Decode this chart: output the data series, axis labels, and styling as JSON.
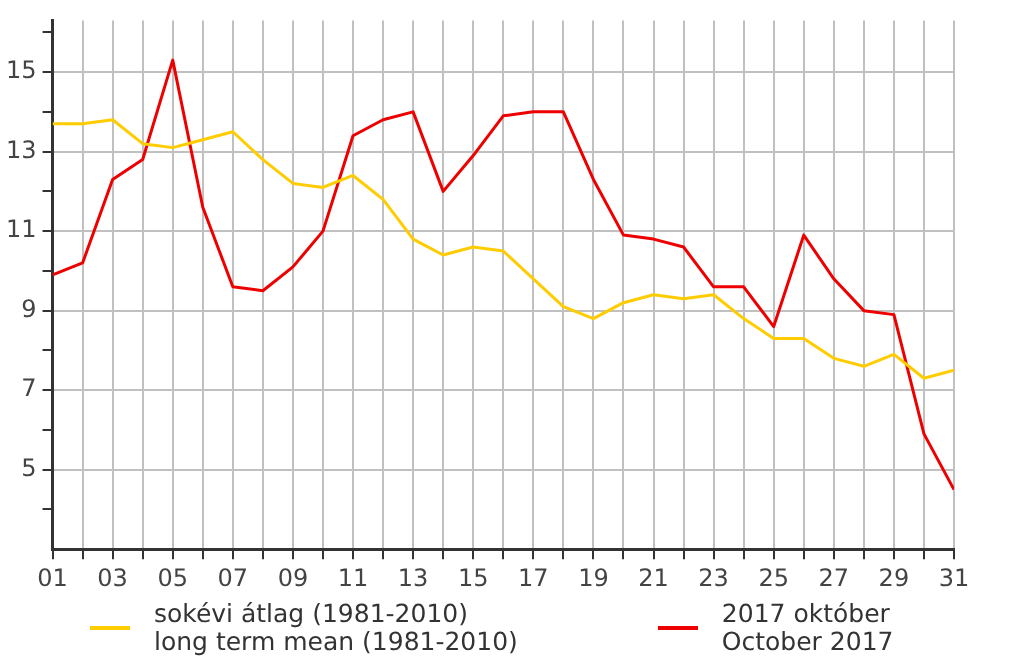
{
  "chart_data": {
    "type": "line",
    "x": [
      1,
      2,
      3,
      4,
      5,
      6,
      7,
      8,
      9,
      10,
      11,
      12,
      13,
      14,
      15,
      16,
      17,
      18,
      19,
      20,
      21,
      22,
      23,
      24,
      25,
      26,
      27,
      28,
      29,
      30,
      31
    ],
    "series": [
      {
        "name": "sokévi átlag (1981-2010)\nlong term mean (1981-2010)",
        "color": "#ffcc00",
        "values": [
          13.7,
          13.7,
          13.8,
          13.2,
          13.1,
          13.3,
          13.5,
          12.8,
          12.2,
          12.1,
          12.4,
          11.8,
          10.8,
          10.4,
          10.6,
          10.5,
          9.8,
          9.1,
          8.8,
          9.2,
          9.4,
          9.3,
          9.4,
          8.8,
          8.3,
          8.3,
          7.8,
          7.6,
          7.9,
          7.3,
          7.5
        ]
      },
      {
        "name": "2017 október\nOctober 2017",
        "color": "#ee0000",
        "values": [
          9.9,
          10.2,
          12.3,
          12.8,
          15.3,
          11.6,
          9.6,
          9.5,
          10.1,
          11.0,
          13.4,
          13.8,
          14.0,
          12.0,
          12.9,
          13.9,
          14.0,
          14.0,
          12.3,
          10.9,
          10.8,
          10.6,
          9.6,
          9.6,
          8.6,
          10.9,
          9.8,
          9.0,
          8.9,
          5.9,
          4.5
        ]
      }
    ],
    "xlim": [
      1,
      31
    ],
    "xticks": [
      {
        "value": 1,
        "label": "01"
      },
      {
        "value": 2,
        "label": null
      },
      {
        "value": 3,
        "label": "03"
      },
      {
        "value": 4,
        "label": null
      },
      {
        "value": 5,
        "label": "05"
      },
      {
        "value": 6,
        "label": null
      },
      {
        "value": 7,
        "label": "07"
      },
      {
        "value": 8,
        "label": null
      },
      {
        "value": 9,
        "label": "09"
      },
      {
        "value": 10,
        "label": null
      },
      {
        "value": 11,
        "label": "11"
      },
      {
        "value": 12,
        "label": null
      },
      {
        "value": 13,
        "label": "13"
      },
      {
        "value": 14,
        "label": null
      },
      {
        "value": 15,
        "label": "15"
      },
      {
        "value": 16,
        "label": null
      },
      {
        "value": 17,
        "label": "17"
      },
      {
        "value": 18,
        "label": null
      },
      {
        "value": 19,
        "label": "19"
      },
      {
        "value": 20,
        "label": null
      },
      {
        "value": 21,
        "label": "21"
      },
      {
        "value": 22,
        "label": null
      },
      {
        "value": 23,
        "label": "23"
      },
      {
        "value": 24,
        "label": null
      },
      {
        "value": 25,
        "label": "25"
      },
      {
        "value": 26,
        "label": null
      },
      {
        "value": 27,
        "label": "27"
      },
      {
        "value": 28,
        "label": null
      },
      {
        "value": 29,
        "label": "29"
      },
      {
        "value": 30,
        "label": null
      },
      {
        "value": 31,
        "label": "31"
      }
    ],
    "ylim": [
      3,
      16.3
    ],
    "yticks": [
      {
        "value": 4,
        "label": null
      },
      5,
      {
        "value": 6,
        "label": null
      },
      7,
      {
        "value": 8,
        "label": null
      },
      9,
      {
        "value": 10,
        "label": null
      },
      11,
      {
        "value": 12,
        "label": null
      },
      13,
      {
        "value": 14,
        "label": null
      },
      15,
      {
        "value": 16,
        "label": null
      }
    ],
    "grid": true,
    "legend": "bottom",
    "marker": "none",
    "line_style": "solid"
  }
}
